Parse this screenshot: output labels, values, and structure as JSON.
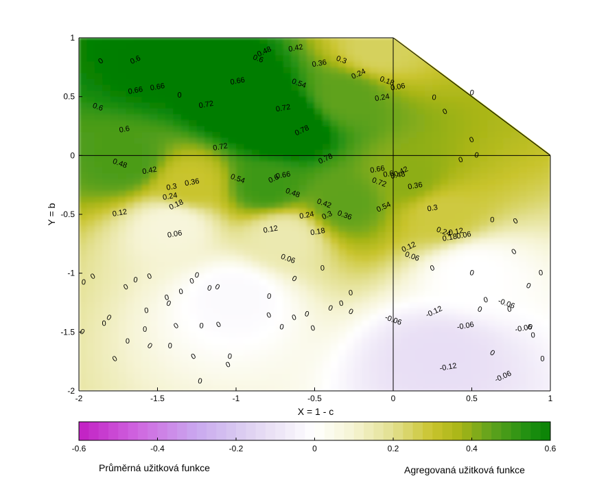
{
  "chart_data": {
    "type": "heatmap",
    "xlabel": "X = 1 - c",
    "ylabel": "Y = b",
    "xlim": [
      -2,
      1
    ],
    "ylim": [
      -2,
      1
    ],
    "x_ticks": [
      "-2",
      "-1.5",
      "-1",
      "-0.5",
      "0",
      "0.5",
      "1"
    ],
    "y_ticks": [
      "1",
      "0.5",
      "0",
      "-0.5",
      "-1",
      "-1.5",
      "-2"
    ],
    "colorbar": {
      "range": [
        -0.6,
        0.6
      ],
      "ticks": [
        "-0.6",
        "-0.4",
        "-0.2",
        "0",
        "0.2",
        "0.4",
        "0.6"
      ],
      "colors": {
        "neg": "#c21ec2",
        "mid": "#ffffff",
        "pos": "#007d00"
      },
      "left_caption": "Průměrná užitková funkce",
      "right_caption": "Agregovaná užitková funkce"
    },
    "blank_region": "upper-right triangle (x > 0, y > 0, above line from (0,1) to (1,0))",
    "surface_samples": [
      {
        "x": -1.5,
        "y": 0.75,
        "v": 0.62
      },
      {
        "x": -1.0,
        "y": 0.5,
        "v": 0.7
      },
      {
        "x": -0.7,
        "y": 0.25,
        "v": 0.74
      },
      {
        "x": -0.3,
        "y": 0.5,
        "v": 0.45
      },
      {
        "x": -0.1,
        "y": 0.9,
        "v": 0.25
      },
      {
        "x": -1.7,
        "y": -0.05,
        "v": 0.48
      },
      {
        "x": -1.3,
        "y": -0.25,
        "v": 0.3
      },
      {
        "x": -0.8,
        "y": -0.25,
        "v": 0.5
      },
      {
        "x": -0.3,
        "y": -0.4,
        "v": 0.45
      },
      {
        "x": 0.1,
        "y": -0.2,
        "v": 0.4
      },
      {
        "x": 0.3,
        "y": -0.5,
        "v": 0.28
      },
      {
        "x": -1.4,
        "y": -0.6,
        "v": 0.08
      },
      {
        "x": -0.7,
        "y": -0.7,
        "v": 0.15
      },
      {
        "x": -1.0,
        "y": -1.2,
        "v": -0.02
      },
      {
        "x": 0.5,
        "y": -1.0,
        "v": 0.0
      },
      {
        "x": 0.3,
        "y": -1.7,
        "v": -0.12
      }
    ],
    "contour_labels": [
      {
        "t": "0.6",
        "x": -1.64,
        "y": 0.81
      },
      {
        "t": "0.66",
        "x": -1.64,
        "y": 0.55
      },
      {
        "t": "0.66",
        "x": -1.5,
        "y": 0.58
      },
      {
        "t": "0.6",
        "x": -1.88,
        "y": 0.41
      },
      {
        "t": "0.6",
        "x": -1.71,
        "y": 0.22
      },
      {
        "t": "0.48",
        "x": -0.82,
        "y": 0.88
      },
      {
        "t": "0.6",
        "x": -0.86,
        "y": 0.82
      },
      {
        "t": "0.42",
        "x": -0.62,
        "y": 0.91
      },
      {
        "t": "0.36",
        "x": -0.47,
        "y": 0.78
      },
      {
        "t": "0.3",
        "x": -0.33,
        "y": 0.81
      },
      {
        "t": "0.24",
        "x": -0.22,
        "y": 0.69
      },
      {
        "t": "0.66",
        "x": -0.99,
        "y": 0.63
      },
      {
        "t": "0.54",
        "x": -0.6,
        "y": 0.61
      },
      {
        "t": "0.72",
        "x": -1.19,
        "y": 0.43
      },
      {
        "t": "0.72",
        "x": -0.7,
        "y": 0.4
      },
      {
        "t": "0.78",
        "x": -0.58,
        "y": 0.21
      },
      {
        "t": "0.72",
        "x": -1.1,
        "y": 0.07
      },
      {
        "t": "0.24",
        "x": -0.07,
        "y": 0.49
      },
      {
        "t": "0.18",
        "x": -0.04,
        "y": 0.63
      },
      {
        "t": "0.06",
        "x": 0.03,
        "y": 0.58
      },
      {
        "t": "0.78",
        "x": -0.43,
        "y": -0.03
      },
      {
        "t": "0.48",
        "x": -1.74,
        "y": -0.07
      },
      {
        "t": "0.42",
        "x": -1.55,
        "y": -0.13
      },
      {
        "t": "0.36",
        "x": -1.28,
        "y": -0.23
      },
      {
        "t": "0.54",
        "x": -0.99,
        "y": -0.2
      },
      {
        "t": "0.6",
        "x": -0.76,
        "y": -0.2
      },
      {
        "t": "0.66",
        "x": -0.7,
        "y": -0.17
      },
      {
        "t": "0.48",
        "x": -0.64,
        "y": -0.32
      },
      {
        "t": "0.3",
        "x": -1.41,
        "y": -0.27
      },
      {
        "t": "0.24",
        "x": -1.42,
        "y": -0.35
      },
      {
        "t": "0.18",
        "x": -1.38,
        "y": -0.42
      },
      {
        "t": "0.12",
        "x": -1.74,
        "y": -0.49
      },
      {
        "t": "0.06",
        "x": -1.39,
        "y": -0.67
      },
      {
        "t": "0.42",
        "x": -0.44,
        "y": -0.41
      },
      {
        "t": "0.24",
        "x": -0.55,
        "y": -0.51
      },
      {
        "t": "0.3",
        "x": -0.42,
        "y": -0.51
      },
      {
        "t": "0.36",
        "x": -0.31,
        "y": -0.51
      },
      {
        "t": "0.12",
        "x": -0.78,
        "y": -0.63
      },
      {
        "t": "0.18",
        "x": -0.48,
        "y": -0.65
      },
      {
        "t": "0.06",
        "x": -0.67,
        "y": -0.88
      },
      {
        "t": "0.54",
        "x": -0.06,
        "y": -0.44
      },
      {
        "t": "0.66",
        "x": -0.1,
        "y": -0.12
      },
      {
        "t": "0.72",
        "x": -0.09,
        "y": -0.23
      },
      {
        "t": "0.6",
        "x": -0.03,
        "y": -0.16
      },
      {
        "t": "0.48",
        "x": 0.03,
        "y": -0.17
      },
      {
        "t": "0.42",
        "x": 0.05,
        "y": -0.14
      },
      {
        "t": "0.36",
        "x": 0.14,
        "y": -0.26
      },
      {
        "t": "0.3",
        "x": 0.25,
        "y": -0.45
      },
      {
        "t": "0.24",
        "x": 0.32,
        "y": -0.65
      },
      {
        "t": "0.18",
        "x": 0.36,
        "y": -0.7
      },
      {
        "t": "0.12",
        "x": 0.1,
        "y": -0.78
      },
      {
        "t": "0.06",
        "x": 0.12,
        "y": -0.86
      },
      {
        "t": "0.12",
        "x": 0.4,
        "y": -0.65
      },
      {
        "t": "0.06",
        "x": 0.45,
        "y": -0.68
      },
      {
        "t": "-0.06",
        "x": 0.0,
        "y": -1.4
      },
      {
        "t": "-0.12",
        "x": 0.26,
        "y": -1.33
      },
      {
        "t": "-0.06",
        "x": 0.46,
        "y": -1.45
      },
      {
        "t": "-0.06",
        "x": 0.72,
        "y": -1.26
      },
      {
        "t": "-0.06",
        "x": 0.83,
        "y": -1.47
      },
      {
        "t": "-0.12",
        "x": 0.35,
        "y": -1.8
      },
      {
        "t": "-0.06",
        "x": 0.7,
        "y": -1.88
      }
    ],
    "zero_labels": [
      [
        -1.86,
        0.8
      ],
      [
        -1.36,
        0.51
      ],
      [
        -1.91,
        -1.03
      ],
      [
        -1.97,
        -1.08
      ],
      [
        -1.7,
        -1.12
      ],
      [
        -1.64,
        -1.06
      ],
      [
        -1.55,
        -1.03
      ],
      [
        -1.25,
        -1.02
      ],
      [
        -1.28,
        -1.07
      ],
      [
        -1.17,
        -1.13
      ],
      [
        -1.44,
        -1.21
      ],
      [
        -1.43,
        -1.26
      ],
      [
        -1.35,
        -1.16
      ],
      [
        -1.12,
        -1.12
      ],
      [
        -1.57,
        -1.32
      ],
      [
        -1.81,
        -1.38
      ],
      [
        -1.84,
        -1.43
      ],
      [
        -1.98,
        -1.5
      ],
      [
        -1.58,
        -1.48
      ],
      [
        -1.38,
        -1.45
      ],
      [
        -1.22,
        -1.45
      ],
      [
        -1.11,
        -1.44
      ],
      [
        -0.79,
        -1.2
      ],
      [
        -0.79,
        -1.36
      ],
      [
        -0.71,
        -1.46
      ],
      [
        -0.63,
        -1.38
      ],
      [
        -0.55,
        -1.35
      ],
      [
        -0.51,
        -1.47
      ],
      [
        -0.4,
        -1.3
      ],
      [
        -0.33,
        -1.26
      ],
      [
        -0.27,
        -1.33
      ],
      [
        -0.27,
        -1.17
      ],
      [
        -0.63,
        -1.05
      ],
      [
        -0.45,
        -0.96
      ],
      [
        -1.55,
        -1.62
      ],
      [
        -1.69,
        -1.58
      ],
      [
        -1.77,
        -1.73
      ],
      [
        -1.42,
        -1.62
      ],
      [
        -1.27,
        -1.71
      ],
      [
        -1.04,
        -1.71
      ],
      [
        -1.05,
        -1.78
      ],
      [
        -1.23,
        -1.92
      ],
      [
        0.25,
        -0.96
      ],
      [
        0.5,
        -1.0
      ],
      [
        0.59,
        -1.23
      ],
      [
        0.55,
        -1.31
      ],
      [
        0.74,
        -1.31
      ],
      [
        0.86,
        -1.11
      ],
      [
        0.94,
        -1.0
      ],
      [
        0.87,
        -1.46
      ],
      [
        0.89,
        -1.53
      ],
      [
        0.63,
        -1.68
      ],
      [
        0.95,
        -1.73
      ],
      [
        0.77,
        -0.82
      ],
      [
        0.63,
        -0.55
      ],
      [
        0.78,
        -0.56
      ],
      [
        0.26,
        0.49
      ],
      [
        0.33,
        0.37
      ],
      [
        0.5,
        0.53
      ],
      [
        0.5,
        0.13
      ],
      [
        0.53,
        0.0
      ],
      [
        0.43,
        -0.04
      ]
    ]
  }
}
